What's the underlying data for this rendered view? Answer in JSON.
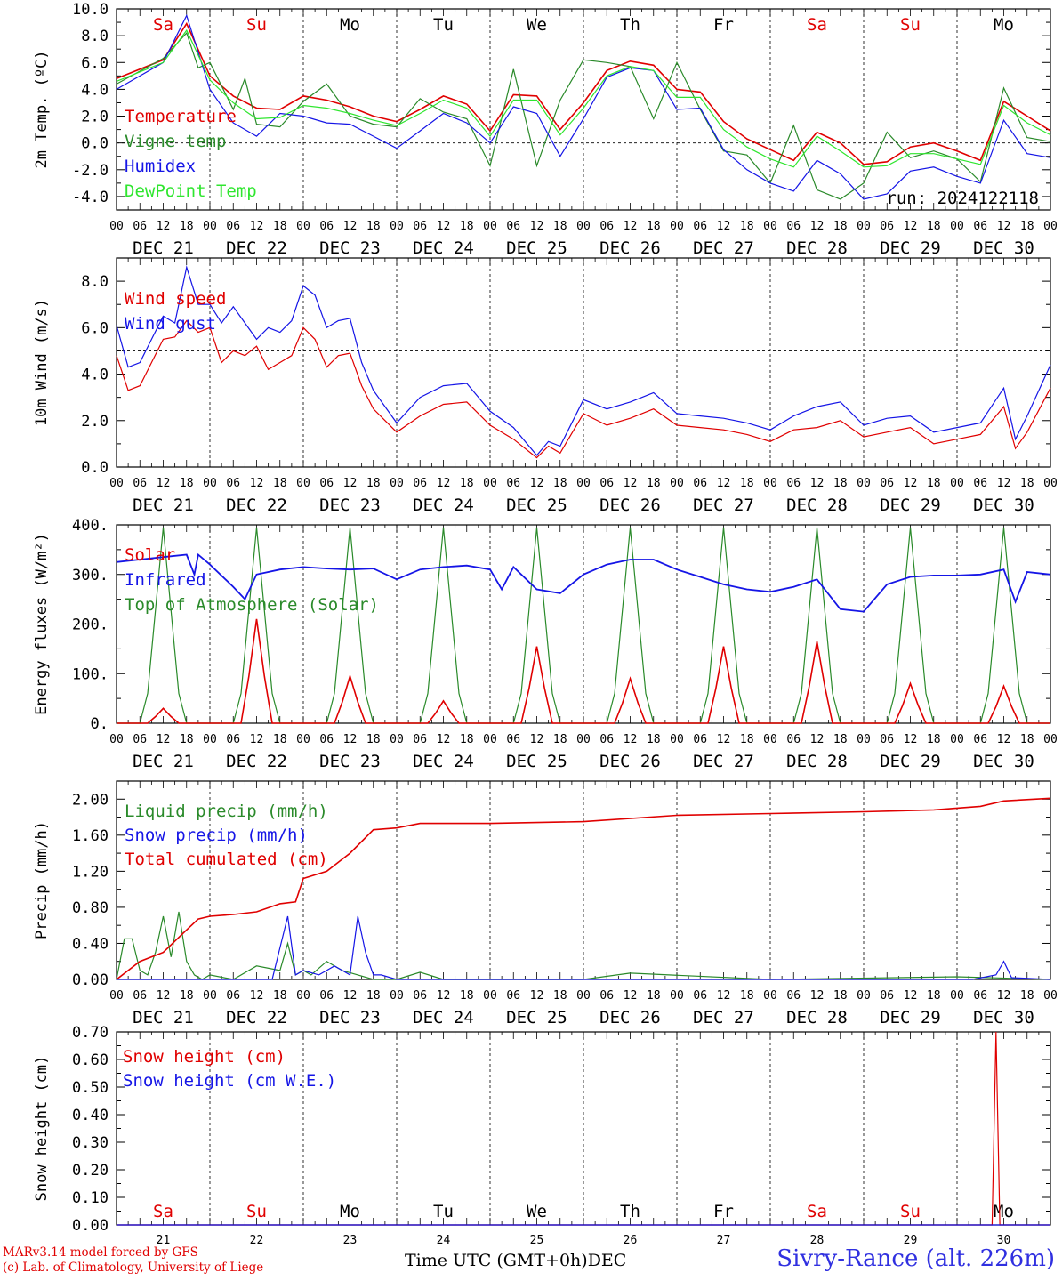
{
  "days": [
    {
      "abbr": "Sa",
      "color": "#e00000",
      "date": "DEC 21",
      "num": "21"
    },
    {
      "abbr": "Su",
      "color": "#e00000",
      "date": "DEC 22",
      "num": "22"
    },
    {
      "abbr": "Mo",
      "color": "#000000",
      "date": "DEC 23",
      "num": "23"
    },
    {
      "abbr": "Tu",
      "color": "#000000",
      "date": "DEC 24",
      "num": "24"
    },
    {
      "abbr": "We",
      "color": "#000000",
      "date": "DEC 25",
      "num": "25"
    },
    {
      "abbr": "Th",
      "color": "#000000",
      "date": "DEC 26",
      "num": "26"
    },
    {
      "abbr": "Fr",
      "color": "#000000",
      "date": "DEC 27",
      "num": "27"
    },
    {
      "abbr": "Sa",
      "color": "#e00000",
      "date": "DEC 28",
      "num": "28"
    },
    {
      "abbr": "Su",
      "color": "#e00000",
      "date": "DEC 29",
      "num": "29"
    },
    {
      "abbr": "Mo",
      "color": "#000000",
      "date": "DEC 30",
      "num": "30"
    }
  ],
  "hour_labels": [
    "00",
    "06",
    "12",
    "18"
  ],
  "final_hour_label": "00",
  "footer": {
    "model_line": "MARv3.14 model forced by GFS",
    "copyright_line": "(c) Lab. of Climatology, University of Liege",
    "xlabel": "Time UTC (GMT+0h)",
    "month": "DEC",
    "station": "Sivry-Rance (alt. 226m)"
  },
  "chart_data": [
    {
      "type": "line",
      "id": "temp",
      "ylabel": "2m Temp. (ºC)",
      "ylim": [
        -5,
        10
      ],
      "yticks": [
        -4,
        -2,
        0,
        2,
        4,
        6,
        8,
        10
      ],
      "ytick_labels": [
        "-4.0",
        "-2.0",
        "0.0",
        "2.0",
        "4.0",
        "6.0",
        "8.0",
        "10.0"
      ],
      "hline": 0,
      "x_unit": "hours from DEC 21 00 UTC",
      "annotation": "run: 2024122118",
      "series": [
        {
          "name": "Temperature",
          "color": "#e00000",
          "x": [
            0,
            12,
            18,
            24,
            30,
            36,
            42,
            48,
            54,
            60,
            66,
            72,
            78,
            84,
            90,
            96,
            102,
            108,
            114,
            120,
            126,
            132,
            138,
            144,
            150,
            156,
            162,
            168,
            174,
            180,
            186,
            192,
            198,
            204,
            210,
            216,
            222,
            228,
            234,
            240
          ],
          "y": [
            4.8,
            6.2,
            8.9,
            5.0,
            3.5,
            2.6,
            2.5,
            3.5,
            3.2,
            2.7,
            2.0,
            1.6,
            2.5,
            3.5,
            2.9,
            0.9,
            3.6,
            3.5,
            1.0,
            3.0,
            5.4,
            6.1,
            5.8,
            4.0,
            3.8,
            1.6,
            0.3,
            -0.5,
            -1.3,
            0.8,
            0.0,
            -1.6,
            -1.4,
            -0.3,
            0.0,
            -0.6,
            -1.3,
            3.1,
            2.0,
            0.9
          ]
        },
        {
          "name": "Vigne temp",
          "color": "#2a8a2a",
          "x": [
            0,
            12,
            18,
            21,
            24,
            30,
            33,
            36,
            42,
            48,
            54,
            60,
            66,
            72,
            78,
            84,
            90,
            96,
            102,
            108,
            114,
            120,
            126,
            132,
            138,
            144,
            150,
            156,
            162,
            168,
            174,
            180,
            186,
            192,
            198,
            204,
            210,
            216,
            222,
            228,
            234,
            240
          ],
          "y": [
            4.4,
            6.3,
            8.2,
            5.6,
            6.0,
            2.5,
            4.8,
            1.4,
            1.2,
            3.1,
            4.4,
            2.0,
            1.4,
            1.2,
            3.3,
            2.3,
            1.8,
            -1.7,
            5.5,
            -1.7,
            3.2,
            6.2,
            6.0,
            5.7,
            1.8,
            6.0,
            2.5,
            -0.6,
            -0.9,
            -3.0,
            1.3,
            -3.5,
            -4.2,
            -3.0,
            0.8,
            -1.1,
            -0.6,
            -1.2,
            -2.9,
            4.1,
            0.4,
            0.1
          ]
        },
        {
          "name": "Humidex",
          "color": "#1515e6",
          "x": [
            0,
            12,
            18,
            24,
            30,
            36,
            42,
            48,
            54,
            60,
            66,
            72,
            78,
            84,
            90,
            96,
            102,
            108,
            114,
            120,
            126,
            132,
            138,
            144,
            150,
            156,
            162,
            168,
            174,
            180,
            186,
            192,
            198,
            204,
            210,
            216,
            222,
            228,
            234,
            240
          ],
          "y": [
            4.0,
            6.0,
            9.5,
            4.0,
            1.5,
            0.5,
            2.2,
            2.0,
            1.5,
            1.4,
            0.5,
            -0.4,
            0.9,
            2.2,
            1.5,
            0.0,
            2.7,
            2.2,
            -1.0,
            1.8,
            4.9,
            5.6,
            5.4,
            2.5,
            2.6,
            -0.5,
            -2.0,
            -3.0,
            -3.6,
            -1.3,
            -2.3,
            -4.2,
            -3.8,
            -2.1,
            -1.8,
            -2.5,
            -3.0,
            1.7,
            -0.8,
            -1.1
          ]
        },
        {
          "name": "DewPoint Temp",
          "color": "#2fe62f",
          "x": [
            0,
            12,
            18,
            24,
            30,
            36,
            42,
            48,
            54,
            60,
            66,
            72,
            78,
            84,
            90,
            96,
            102,
            108,
            114,
            120,
            126,
            132,
            138,
            144,
            150,
            156,
            162,
            168,
            174,
            180,
            186,
            192,
            198,
            204,
            210,
            216,
            222,
            228,
            234,
            240
          ],
          "y": [
            4.6,
            6.0,
            8.4,
            4.7,
            3.0,
            1.8,
            1.9,
            2.8,
            2.6,
            2.2,
            1.7,
            1.3,
            2.2,
            3.2,
            2.6,
            0.5,
            3.2,
            3.2,
            0.6,
            2.6,
            5.0,
            5.7,
            5.4,
            3.4,
            3.4,
            1.0,
            -0.3,
            -1.2,
            -1.8,
            0.5,
            -0.6,
            -1.8,
            -1.7,
            -0.8,
            -0.8,
            -1.2,
            -1.6,
            2.8,
            1.5,
            0.6
          ]
        }
      ]
    },
    {
      "type": "line",
      "id": "wind",
      "ylabel": "10m Wind (m/s)",
      "ylim": [
        0,
        9
      ],
      "yticks": [
        0,
        2,
        4,
        6,
        8
      ],
      "ytick_labels": [
        "0.0",
        "2.0",
        "4.0",
        "6.0",
        "8.0"
      ],
      "hline": 5,
      "series": [
        {
          "name": "Wind speed",
          "color": "#e00000",
          "x": [
            0,
            3,
            6,
            9,
            12,
            15,
            18,
            21,
            24,
            27,
            30,
            33,
            36,
            39,
            42,
            45,
            48,
            51,
            54,
            57,
            60,
            63,
            66,
            72,
            78,
            84,
            90,
            96,
            102,
            108,
            111,
            114,
            120,
            126,
            132,
            138,
            144,
            150,
            156,
            162,
            168,
            174,
            180,
            186,
            192,
            198,
            204,
            210,
            216,
            222,
            228,
            231,
            234,
            240
          ],
          "y": [
            4.8,
            3.3,
            3.5,
            4.5,
            5.5,
            5.6,
            6.3,
            5.8,
            6.0,
            4.5,
            5.0,
            4.8,
            5.2,
            4.2,
            4.5,
            4.8,
            6.0,
            5.5,
            4.3,
            4.8,
            4.9,
            3.5,
            2.5,
            1.5,
            2.2,
            2.7,
            2.8,
            1.8,
            1.2,
            0.4,
            0.9,
            0.6,
            2.3,
            1.8,
            2.1,
            2.5,
            1.8,
            1.7,
            1.6,
            1.4,
            1.1,
            1.6,
            1.7,
            2.0,
            1.3,
            1.5,
            1.7,
            1.0,
            1.2,
            1.4,
            2.6,
            0.8,
            1.5,
            3.4
          ]
        },
        {
          "name": "Wind gust",
          "color": "#1515e6",
          "x": [
            0,
            3,
            6,
            9,
            12,
            15,
            18,
            21,
            24,
            27,
            30,
            33,
            36,
            39,
            42,
            45,
            48,
            51,
            54,
            57,
            60,
            63,
            66,
            72,
            78,
            84,
            90,
            96,
            102,
            108,
            111,
            114,
            120,
            126,
            132,
            138,
            144,
            150,
            156,
            162,
            168,
            174,
            180,
            186,
            192,
            198,
            204,
            210,
            216,
            222,
            228,
            231,
            234,
            240
          ],
          "y": [
            6.1,
            4.3,
            4.5,
            5.5,
            6.5,
            6.2,
            8.6,
            7.0,
            7.0,
            6.2,
            6.9,
            6.2,
            5.5,
            6.0,
            5.8,
            6.3,
            7.8,
            7.4,
            6.0,
            6.3,
            6.4,
            4.5,
            3.3,
            1.9,
            3.0,
            3.5,
            3.6,
            2.4,
            1.7,
            0.5,
            1.1,
            0.9,
            2.9,
            2.5,
            2.8,
            3.2,
            2.3,
            2.2,
            2.1,
            1.9,
            1.6,
            2.2,
            2.6,
            2.8,
            1.8,
            2.1,
            2.2,
            1.5,
            1.7,
            1.9,
            3.4,
            1.2,
            2.2,
            4.4
          ]
        }
      ]
    },
    {
      "type": "line",
      "id": "energy",
      "ylabel": "Energy fluxes (W/m²)",
      "ylim": [
        0,
        400
      ],
      "yticks": [
        0,
        100,
        200,
        300,
        400
      ],
      "ytick_labels": [
        "0.",
        "100.",
        "200.",
        "300.",
        "400."
      ],
      "hline": null,
      "solar_peaks": [
        30,
        210,
        95,
        45,
        155,
        90,
        155,
        165,
        80,
        75
      ],
      "toa_peak": 395,
      "series": [
        {
          "name": "Solar",
          "color": "#e00000"
        },
        {
          "name": "Infrared",
          "color": "#1515e6",
          "x": [
            0,
            6,
            12,
            18,
            20,
            21,
            24,
            30,
            33,
            36,
            42,
            48,
            54,
            60,
            66,
            72,
            78,
            84,
            90,
            96,
            99,
            102,
            108,
            114,
            120,
            126,
            132,
            138,
            144,
            150,
            156,
            162,
            168,
            174,
            180,
            186,
            192,
            198,
            204,
            210,
            216,
            222,
            228,
            231,
            234,
            240
          ],
          "y": [
            325,
            330,
            335,
            340,
            300,
            340,
            320,
            275,
            250,
            300,
            310,
            315,
            312,
            310,
            312,
            290,
            310,
            315,
            318,
            310,
            270,
            315,
            270,
            262,
            300,
            320,
            330,
            330,
            310,
            295,
            280,
            270,
            265,
            275,
            290,
            230,
            225,
            280,
            295,
            298,
            298,
            300,
            310,
            245,
            305,
            300
          ]
        },
        {
          "name": "Top of Atmosphere (Solar)",
          "color": "#2a8a2a"
        }
      ]
    },
    {
      "type": "line",
      "id": "precip",
      "ylabel": "Precip (mm/h)",
      "ylim": [
        0,
        2.2
      ],
      "yticks": [
        0,
        0.4,
        0.8,
        1.2,
        1.6,
        2.0
      ],
      "ytick_labels": [
        "0.00",
        "0.40",
        "0.80",
        "1.20",
        "1.60",
        "2.00"
      ],
      "hline": null,
      "series": [
        {
          "name": "Liquid precip (mm/h)",
          "color": "#2a8a2a",
          "x": [
            0,
            2,
            4,
            6,
            8,
            10,
            12,
            14,
            16,
            18,
            20,
            22,
            24,
            30,
            36,
            42,
            44,
            46,
            48,
            50,
            54,
            58,
            62,
            66,
            72,
            78,
            84,
            96,
            120,
            132,
            168,
            216,
            240
          ],
          "y": [
            0.0,
            0.45,
            0.45,
            0.1,
            0.05,
            0.3,
            0.7,
            0.25,
            0.75,
            0.2,
            0.05,
            0.0,
            0.05,
            0.0,
            0.15,
            0.1,
            0.4,
            0.05,
            0.1,
            0.05,
            0.2,
            0.1,
            0.05,
            0.0,
            0.0,
            0.08,
            0.0,
            0.0,
            0.0,
            0.07,
            0.0,
            0.03,
            0.0
          ]
        },
        {
          "name": "Snow precip (mm/h)",
          "color": "#1515e6",
          "x": [
            0,
            40,
            44,
            46,
            48,
            52,
            56,
            60,
            62,
            64,
            66,
            68,
            72,
            120,
            220,
            226,
            228,
            230,
            240
          ],
          "y": [
            0.0,
            0.0,
            0.7,
            0.05,
            0.1,
            0.05,
            0.15,
            0.05,
            0.7,
            0.3,
            0.05,
            0.05,
            0.0,
            0.0,
            0.0,
            0.05,
            0.2,
            0.02,
            0.0
          ]
        },
        {
          "name": "Total cumulated (cm)",
          "color": "#e00000",
          "x": [
            0,
            6,
            12,
            18,
            21,
            24,
            30,
            36,
            42,
            46,
            48,
            54,
            57,
            60,
            66,
            72,
            78,
            96,
            120,
            144,
            168,
            192,
            210,
            216,
            222,
            228,
            240
          ],
          "y": [
            0.0,
            0.2,
            0.3,
            0.55,
            0.67,
            0.7,
            0.72,
            0.75,
            0.84,
            0.86,
            1.12,
            1.2,
            1.3,
            1.4,
            1.66,
            1.68,
            1.73,
            1.73,
            1.75,
            1.82,
            1.84,
            1.86,
            1.88,
            1.9,
            1.92,
            1.98,
            2.01
          ]
        }
      ]
    },
    {
      "type": "line",
      "id": "snow",
      "ylabel": "Snow height (cm)",
      "ylim": [
        0,
        0.7
      ],
      "yticks": [
        0,
        0.1,
        0.2,
        0.3,
        0.4,
        0.5,
        0.6,
        0.7
      ],
      "ytick_labels": [
        "0.00",
        "0.10",
        "0.20",
        "0.30",
        "0.40",
        "0.50",
        "0.60",
        "0.70"
      ],
      "hline": null,
      "series": [
        {
          "name": "Snow height (cm)",
          "color": "#e00000",
          "x": [
            0,
            225,
            226,
            227,
            240
          ],
          "y": [
            0,
            0,
            0.7,
            0,
            0
          ]
        },
        {
          "name": "Snow height (cm W.E.)",
          "color": "#1515e6",
          "x": [
            0,
            240
          ],
          "y": [
            0,
            0
          ]
        }
      ]
    }
  ]
}
